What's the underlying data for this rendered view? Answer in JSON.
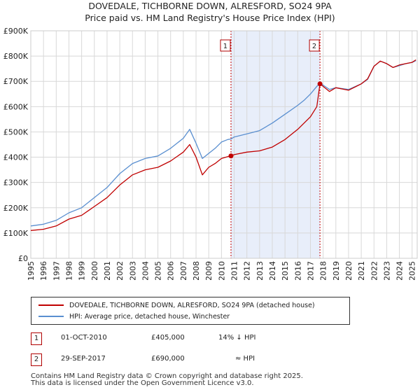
{
  "title_line1": "DOVEDALE, TICHBORNE DOWN, ALRESFORD, SO24 9PA",
  "title_line2": "Price paid vs. HM Land Registry's House Price Index (HPI)",
  "chart_data": {
    "type": "line",
    "ylim": [
      0,
      900000
    ],
    "xlim": [
      1995,
      2025.4
    ],
    "y_ticks": [
      {
        "value": 0,
        "label": "£0"
      },
      {
        "value": 100000,
        "label": "£100K"
      },
      {
        "value": 200000,
        "label": "£200K"
      },
      {
        "value": 300000,
        "label": "£300K"
      },
      {
        "value": 400000,
        "label": "£400K"
      },
      {
        "value": 500000,
        "label": "£500K"
      },
      {
        "value": 600000,
        "label": "£600K"
      },
      {
        "value": 700000,
        "label": "£700K"
      },
      {
        "value": 800000,
        "label": "£800K"
      },
      {
        "value": 900000,
        "label": "£900K"
      }
    ],
    "x_ticks": [
      "1995",
      "1996",
      "1997",
      "1998",
      "1999",
      "2000",
      "2001",
      "2002",
      "2003",
      "2004",
      "2005",
      "2006",
      "2007",
      "2008",
      "2009",
      "2010",
      "2011",
      "2012",
      "2013",
      "2014",
      "2015",
      "2016",
      "2017",
      "2018",
      "2019",
      "2020",
      "2021",
      "2022",
      "2023",
      "2024",
      "2025"
    ],
    "shaded_region": {
      "from": 2010.75,
      "to": 2017.75
    },
    "series": [
      {
        "name": "DOVEDALE, TICHBORNE DOWN, ALRESFORD, SO24 9PA (detached house)",
        "color": "#c00000",
        "x": [
          1995,
          1996,
          1997,
          1998,
          1999,
          2000,
          2001,
          2002,
          2003,
          2004,
          2005,
          2006,
          2007,
          2007.5,
          2008,
          2008.5,
          2009,
          2009.5,
          2010,
          2010.5,
          2010.75,
          2011,
          2012,
          2013,
          2014,
          2015,
          2016,
          2016.5,
          2017,
          2017.5,
          2017.75,
          2018,
          2018.5,
          2019,
          2020,
          2021,
          2021.5,
          2022,
          2022.5,
          2023,
          2023.5,
          2024,
          2024.5,
          2025,
          2025.3
        ],
        "y": [
          110000,
          115000,
          128000,
          155000,
          170000,
          205000,
          240000,
          290000,
          330000,
          350000,
          360000,
          385000,
          420000,
          450000,
          400000,
          330000,
          360000,
          375000,
          395000,
          402000,
          405000,
          410000,
          420000,
          425000,
          440000,
          470000,
          510000,
          535000,
          560000,
          600000,
          690000,
          680000,
          660000,
          675000,
          665000,
          690000,
          710000,
          760000,
          780000,
          770000,
          755000,
          765000,
          770000,
          775000,
          785000
        ]
      },
      {
        "name": "HPI: Average price, detached house, Winchester",
        "color": "#5a8fd0",
        "x": [
          1995,
          1996,
          1997,
          1998,
          1999,
          2000,
          2001,
          2002,
          2003,
          2004,
          2005,
          2006,
          2007,
          2007.5,
          2008,
          2008.5,
          2009,
          2009.5,
          2010,
          2010.5,
          2010.75,
          2011,
          2012,
          2013,
          2014,
          2015,
          2016,
          2016.5,
          2017,
          2017.5,
          2017.75,
          2018,
          2018.5,
          2019,
          2020,
          2021,
          2021.5,
          2022,
          2022.5,
          2023,
          2023.5,
          2024,
          2024.5,
          2025,
          2025.3
        ],
        "y": [
          128000,
          135000,
          150000,
          180000,
          200000,
          240000,
          280000,
          335000,
          375000,
          395000,
          405000,
          435000,
          475000,
          510000,
          455000,
          395000,
          415000,
          435000,
          460000,
          470000,
          472000,
          480000,
          492000,
          505000,
          535000,
          570000,
          605000,
          625000,
          650000,
          680000,
          692000,
          685000,
          668000,
          675000,
          668000,
          690000,
          708000,
          760000,
          780000,
          770000,
          755000,
          762000,
          770000,
          775000,
          782000
        ]
      }
    ],
    "sales": [
      {
        "id": "1",
        "x": 2010.75,
        "y": 405000
      },
      {
        "id": "2",
        "x": 2017.75,
        "y": 690000
      }
    ]
  },
  "legend": {
    "series1": "DOVEDALE, TICHBORNE DOWN, ALRESFORD, SO24 9PA (detached house)",
    "series2": "HPI: Average price, detached house, Winchester"
  },
  "transactions": [
    {
      "id": "1",
      "date": "01-OCT-2010",
      "price": "£405,000",
      "hpi": "14% ↓ HPI"
    },
    {
      "id": "2",
      "date": "29-SEP-2017",
      "price": "£690,000",
      "hpi": "≈ HPI"
    }
  ],
  "footer_line1": "Contains HM Land Registry data © Crown copyright and database right 2025.",
  "footer_line2": "This data is licensed under the Open Government Licence v3.0."
}
